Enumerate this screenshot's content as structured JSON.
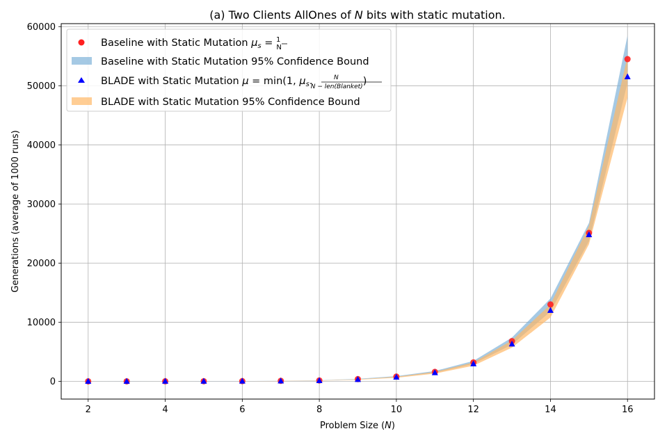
{
  "chart_data": {
    "type": "scatter",
    "title": "(a) Two Clients AllOnes of N bits with static mutation.",
    "xlabel": "Problem Size (N)",
    "ylabel": "Generations (average of 1000 runs)",
    "xlim": [
      1.3,
      16.7
    ],
    "ylim": [
      -3000,
      60500
    ],
    "xticks": [
      2,
      4,
      6,
      8,
      10,
      12,
      14,
      16
    ],
    "yticks": [
      0,
      10000,
      20000,
      30000,
      40000,
      50000,
      60000
    ],
    "grid": true,
    "legend_position": "top-left",
    "x": [
      2,
      3,
      4,
      5,
      6,
      7,
      8,
      9,
      10,
      11,
      12,
      13,
      14,
      15,
      16
    ],
    "series": [
      {
        "name": "Baseline with Static Mutation μs = 1/N",
        "marker": "circle",
        "color": "#ff2020",
        "values": [
          2,
          5,
          10,
          20,
          40,
          80,
          150,
          380,
          800,
          1600,
          3200,
          6800,
          13000,
          25100,
          54500
        ]
      },
      {
        "name": "Baseline with Static Mutation 95% Confidence Bound",
        "kind": "band",
        "color": "#7fb2d9",
        "lower": [
          1,
          4,
          8,
          17,
          35,
          70,
          130,
          340,
          720,
          1450,
          2950,
          6200,
          11800,
          23700,
          50500
        ],
        "upper": [
          3,
          6,
          12,
          23,
          45,
          90,
          170,
          420,
          880,
          1750,
          3450,
          7400,
          14000,
          26800,
          58500
        ]
      },
      {
        "name": "BLADE with Static Mutation μ = min(1, μs · N/(N − len(Blanket)))",
        "marker": "triangle",
        "color": "#0000ff",
        "values": [
          1,
          4,
          8,
          15,
          30,
          60,
          120,
          300,
          700,
          1450,
          2950,
          6300,
          12000,
          24800,
          51500
        ]
      },
      {
        "name": "BLADE with Static Mutation 95% Confidence Bound",
        "kind": "band",
        "color": "#ffb866",
        "lower": [
          0,
          3,
          6,
          12,
          25,
          50,
          100,
          260,
          600,
          1300,
          2650,
          5700,
          10800,
          23200,
          48000
        ],
        "upper": [
          2,
          5,
          10,
          18,
          35,
          70,
          140,
          340,
          780,
          1600,
          3200,
          6900,
          13000,
          26300,
          55000
        ]
      }
    ],
    "legend": {
      "entry1": "Baseline with Static Mutation",
      "entry2": "Baseline with Static Mutation 95% Confidence Bound",
      "entry3": "BLADE with Static Mutation",
      "entry4": "BLADE with Static Mutation 95% Confidence Bound"
    },
    "title_text": {
      "before": "(a) Two Clients AllOnes of ",
      "var": "N",
      "after": " bits with static mutation."
    },
    "xlabel_text": {
      "before": "Problem Size (",
      "var": "N",
      "after": ")"
    }
  }
}
